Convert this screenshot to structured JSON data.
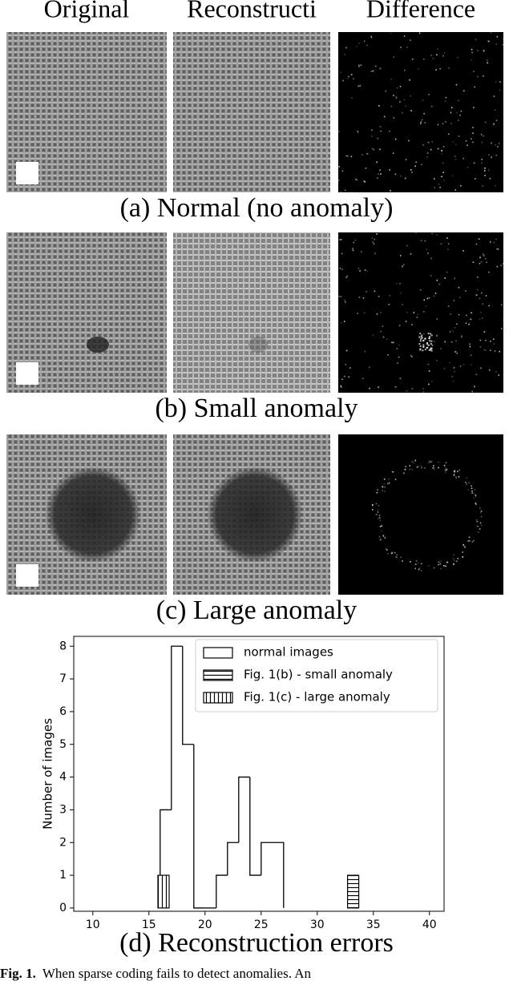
{
  "figure": {
    "column_headers": [
      "Original",
      "Reconstructi",
      "Difference"
    ],
    "rows": [
      {
        "caption": "(a) Normal (no anomaly)"
      },
      {
        "caption": "(b) Small anomaly"
      },
      {
        "caption": "(c) Large anomaly"
      }
    ]
  },
  "chart_data": {
    "type": "histogram",
    "caption": "(d) Reconstruction errors",
    "y_label": "Number of images",
    "series": [
      {
        "name": "normal images",
        "color": "#000000",
        "hatch": null,
        "style": "step",
        "bins": [
          16,
          17,
          18,
          19,
          20,
          21,
          22,
          23,
          24,
          25,
          26,
          27
        ],
        "values": [
          3,
          8,
          5,
          0,
          0,
          1,
          2,
          4,
          1,
          2,
          2
        ]
      },
      {
        "name": "Fig. 1(b) - small anomaly",
        "color": "#000000",
        "hatch": "-",
        "style": "bar",
        "bins": [
          32.7,
          33.7
        ],
        "values": [
          1
        ]
      },
      {
        "name": "Fig. 1(c) - large anomaly",
        "color": "#000000",
        "hatch": "|",
        "style": "bar",
        "bins": [
          15.8,
          16.8
        ],
        "values": [
          1
        ]
      }
    ],
    "xlim": [
      8.3,
      41.3
    ],
    "ylim": [
      -0.1,
      8.3
    ],
    "xticks": [
      10,
      15,
      20,
      25,
      30,
      35,
      40
    ],
    "yticks": [
      0,
      1,
      2,
      3,
      4,
      5,
      6,
      7,
      8
    ],
    "legend": "upper right"
  },
  "caption": {
    "label": "Fig. 1.",
    "text": "When sparse coding fails to detect anomalies. An"
  }
}
